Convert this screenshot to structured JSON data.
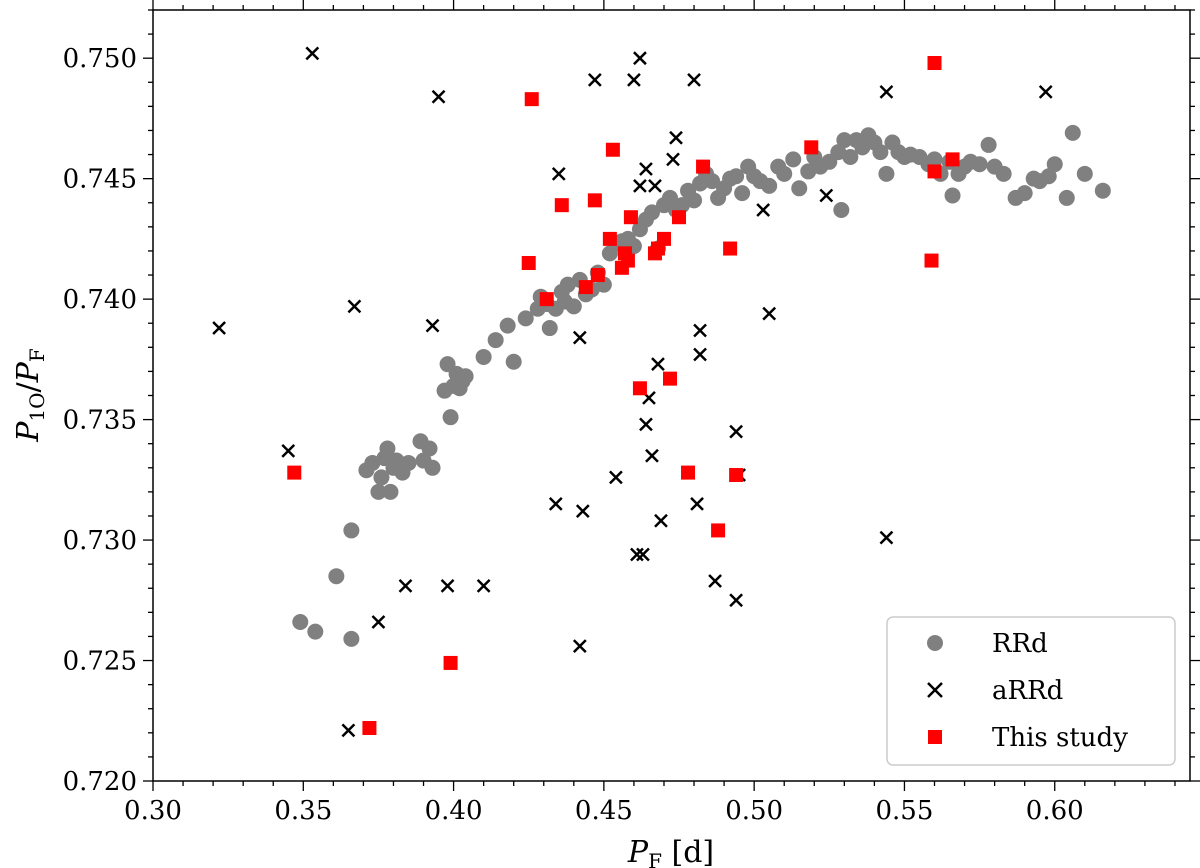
{
  "chart_data": {
    "type": "scatter",
    "xlabel": {
      "main": "P",
      "sub": "F",
      "suffix": " [d]"
    },
    "ylabel": {
      "main": "P",
      "sub": "1O",
      "mid": "/",
      "main2": "P",
      "sub2": "F"
    },
    "xlim": [
      0.3,
      0.645
    ],
    "ylim": [
      0.72,
      0.752
    ],
    "xticks": [
      "0.30",
      "0.35",
      "0.40",
      "0.45",
      "0.50",
      "0.55",
      "0.60"
    ],
    "yticks": [
      "0.720",
      "0.725",
      "0.730",
      "0.735",
      "0.740",
      "0.745",
      "0.750"
    ],
    "legend_position": "lower-right",
    "series": [
      {
        "name": "RRd",
        "marker": "circle",
        "color": "#808080",
        "x": [
          0.349,
          0.354,
          0.361,
          0.366,
          0.366,
          0.371,
          0.373,
          0.375,
          0.376,
          0.377,
          0.378,
          0.379,
          0.38,
          0.381,
          0.383,
          0.385,
          0.389,
          0.39,
          0.392,
          0.393,
          0.397,
          0.398,
          0.399,
          0.4,
          0.401,
          0.402,
          0.403,
          0.404,
          0.41,
          0.414,
          0.418,
          0.42,
          0.424,
          0.428,
          0.429,
          0.431,
          0.432,
          0.434,
          0.436,
          0.437,
          0.438,
          0.44,
          0.442,
          0.444,
          0.446,
          0.448,
          0.45,
          0.452,
          0.454,
          0.456,
          0.458,
          0.46,
          0.462,
          0.464,
          0.466,
          0.468,
          0.47,
          0.472,
          0.474,
          0.476,
          0.478,
          0.48,
          0.482,
          0.484,
          0.486,
          0.488,
          0.49,
          0.492,
          0.494,
          0.496,
          0.498,
          0.5,
          0.502,
          0.505,
          0.508,
          0.51,
          0.513,
          0.515,
          0.518,
          0.52,
          0.522,
          0.525,
          0.528,
          0.529,
          0.53,
          0.532,
          0.534,
          0.536,
          0.538,
          0.54,
          0.542,
          0.544,
          0.546,
          0.548,
          0.55,
          0.552,
          0.555,
          0.558,
          0.56,
          0.562,
          0.565,
          0.566,
          0.568,
          0.57,
          0.572,
          0.575,
          0.578,
          0.58,
          0.583,
          0.587,
          0.59,
          0.593,
          0.595,
          0.598,
          0.6,
          0.604,
          0.606,
          0.61,
          0.616
        ],
        "y": [
          0.7266,
          0.7262,
          0.7285,
          0.7259,
          0.7304,
          0.7329,
          0.7332,
          0.732,
          0.7326,
          0.7334,
          0.7338,
          0.732,
          0.733,
          0.7333,
          0.7328,
          0.7332,
          0.7341,
          0.7333,
          0.7338,
          0.733,
          0.7362,
          0.7373,
          0.7351,
          0.7364,
          0.7369,
          0.7363,
          0.7366,
          0.7368,
          0.7376,
          0.7383,
          0.7389,
          0.7374,
          0.7392,
          0.7396,
          0.7401,
          0.7398,
          0.7388,
          0.7396,
          0.7403,
          0.7399,
          0.7406,
          0.7397,
          0.7408,
          0.7402,
          0.7404,
          0.7411,
          0.7406,
          0.7419,
          0.7423,
          0.7424,
          0.7425,
          0.7422,
          0.7429,
          0.7433,
          0.7436,
          0.7421,
          0.7439,
          0.7442,
          0.7437,
          0.7439,
          0.7445,
          0.7441,
          0.7448,
          0.7452,
          0.7449,
          0.7442,
          0.7446,
          0.745,
          0.7451,
          0.7444,
          0.7455,
          0.7451,
          0.7449,
          0.7447,
          0.7455,
          0.7452,
          0.7458,
          0.7446,
          0.7453,
          0.7459,
          0.7455,
          0.7457,
          0.7461,
          0.7437,
          0.7466,
          0.7459,
          0.7466,
          0.7463,
          0.7468,
          0.7465,
          0.7461,
          0.7452,
          0.7465,
          0.7461,
          0.7459,
          0.746,
          0.7459,
          0.7456,
          0.7458,
          0.7452,
          0.7457,
          0.7443,
          0.7452,
          0.7455,
          0.7457,
          0.7456,
          0.7464,
          0.7455,
          0.7452,
          0.7442,
          0.7444,
          0.745,
          0.7449,
          0.7451,
          0.7456,
          0.7442,
          0.7469,
          0.7452,
          0.7445
        ]
      },
      {
        "name": "aRRd",
        "marker": "x",
        "color": "#000000",
        "x": [
          0.322,
          0.345,
          0.353,
          0.365,
          0.367,
          0.375,
          0.384,
          0.393,
          0.395,
          0.398,
          0.41,
          0.434,
          0.435,
          0.442,
          0.442,
          0.443,
          0.447,
          0.454,
          0.46,
          0.461,
          0.462,
          0.463,
          0.462,
          0.464,
          0.465,
          0.464,
          0.466,
          0.467,
          0.468,
          0.469,
          0.473,
          0.474,
          0.48,
          0.481,
          0.482,
          0.482,
          0.487,
          0.494,
          0.494,
          0.495,
          0.503,
          0.505,
          0.524,
          0.544,
          0.544,
          0.597
        ],
        "y": [
          0.7388,
          0.7337,
          0.7502,
          0.7221,
          0.7397,
          0.7266,
          0.7281,
          0.7389,
          0.7484,
          0.7281,
          0.7281,
          0.7315,
          0.7452,
          0.7384,
          0.7256,
          0.7312,
          0.7491,
          0.7326,
          0.7491,
          0.7294,
          0.75,
          0.7294,
          0.7447,
          0.7348,
          0.7359,
          0.7454,
          0.7335,
          0.7447,
          0.7373,
          0.7308,
          0.7458,
          0.7467,
          0.7491,
          0.7315,
          0.7377,
          0.7387,
          0.7283,
          0.7275,
          0.7345,
          0.7327,
          0.7437,
          0.7394,
          0.7443,
          0.7486,
          0.7301,
          0.7486
        ]
      },
      {
        "name": "This study",
        "marker": "square",
        "color": "#ff0000",
        "x": [
          0.347,
          0.372,
          0.399,
          0.425,
          0.426,
          0.431,
          0.436,
          0.444,
          0.447,
          0.448,
          0.452,
          0.453,
          0.456,
          0.457,
          0.458,
          0.459,
          0.462,
          0.467,
          0.468,
          0.47,
          0.472,
          0.475,
          0.478,
          0.483,
          0.488,
          0.492,
          0.494,
          0.519,
          0.559,
          0.56,
          0.56,
          0.566
        ],
        "y": [
          0.7328,
          0.7222,
          0.7249,
          0.7415,
          0.7483,
          0.74,
          0.7439,
          0.7405,
          0.7441,
          0.741,
          0.7425,
          0.7462,
          0.7413,
          0.7419,
          0.7416,
          0.7434,
          0.7363,
          0.7419,
          0.7421,
          0.7425,
          0.7367,
          0.7434,
          0.7328,
          0.7455,
          0.7304,
          0.7421,
          0.7327,
          0.7463,
          0.7416,
          0.7453,
          0.7498,
          0.7458
        ]
      }
    ]
  }
}
